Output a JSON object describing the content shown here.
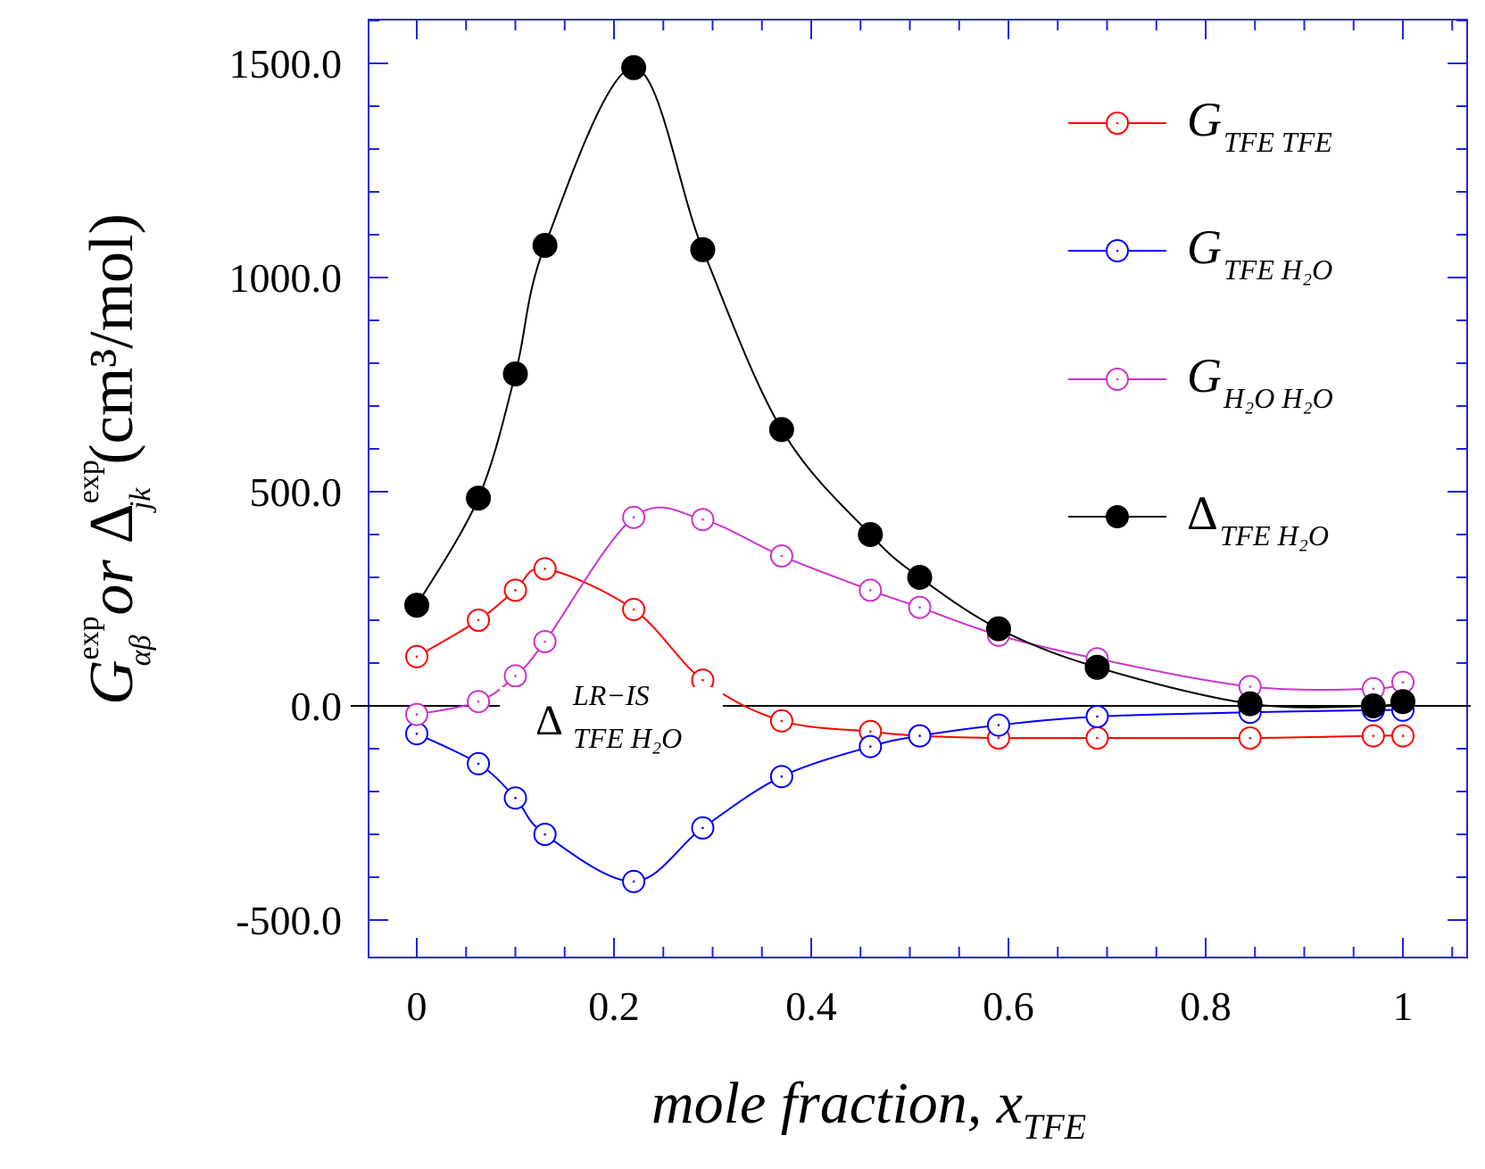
{
  "chart_data": {
    "type": "line",
    "xlabel": "mole fraction, x",
    "xlabel_sub": "TFE",
    "ylabel": {
      "g_main": "G",
      "g_sup": "exp",
      "g_sub": "αβ",
      "or_text": "or",
      "delta_main": "Δ",
      "delta_sup": "exp",
      "delta_sub": "jk",
      "units": "(cm³/mol)"
    },
    "xlim": [
      -0.05,
      1.05
    ],
    "ylim": [
      -600,
      1600
    ],
    "x_ticks": [
      0,
      0.2,
      0.4,
      0.6,
      0.8,
      1
    ],
    "x_tick_labels": [
      "0",
      "0.2",
      "0.4",
      "0.6",
      "0.8",
      "1"
    ],
    "y_ticks": [
      -500,
      0,
      500,
      1000,
      1500
    ],
    "y_tick_labels": [
      "-500.0",
      "0.0",
      "500.0",
      "1000.0",
      "1500.0"
    ],
    "series": [
      {
        "name": "G_TFE_TFE",
        "legend_main": "G",
        "legend_sub": "TFE TFE",
        "color": "#ff0000",
        "marker": "open-circle",
        "x": [
          0,
          0.0625,
          0.1,
          0.13,
          0.22,
          0.29,
          0.37,
          0.46,
          0.51,
          0.59,
          0.69,
          0.845,
          0.97,
          1.0
        ],
        "y": [
          115,
          200,
          270,
          320,
          225,
          60,
          -35,
          -60,
          -70,
          -75,
          -75,
          -75,
          -70,
          -70
        ]
      },
      {
        "name": "G_TFE_H2O",
        "legend_main": "G",
        "legend_sub": "TFE H₂O",
        "color": "#0000ff",
        "marker": "open-circle",
        "x": [
          0,
          0.0625,
          0.1,
          0.13,
          0.22,
          0.29,
          0.37,
          0.46,
          0.51,
          0.59,
          0.69,
          0.845,
          0.97,
          1.0
        ],
        "y": [
          -65,
          -135,
          -215,
          -300,
          -410,
          -285,
          -165,
          -95,
          -70,
          -45,
          -25,
          -15,
          -10,
          -10
        ]
      },
      {
        "name": "G_H2O_H2O",
        "legend_main": "G",
        "legend_sub": "H₂O H₂O",
        "color": "#cc33cc",
        "marker": "open-circle",
        "x": [
          0,
          0.0625,
          0.1,
          0.13,
          0.22,
          0.29,
          0.37,
          0.46,
          0.51,
          0.59,
          0.69,
          0.845,
          0.97,
          1.0
        ],
        "y": [
          -20,
          10,
          70,
          150,
          440,
          435,
          350,
          270,
          230,
          165,
          110,
          45,
          40,
          55
        ]
      },
      {
        "name": "Delta_TFE_H2O",
        "legend_main": "Δ",
        "legend_sub": "TFE H₂O",
        "color": "#000000",
        "marker": "filled-circle",
        "x": [
          0,
          0.0625,
          0.1,
          0.13,
          0.22,
          0.29,
          0.37,
          0.46,
          0.51,
          0.59,
          0.69,
          0.845,
          0.97,
          1.0
        ],
        "y": [
          235,
          485,
          775,
          1075,
          1490,
          1065,
          645,
          400,
          300,
          180,
          90,
          5,
          0,
          10
        ]
      }
    ],
    "annotation": {
      "main": "Δ",
      "sup": "LR−IS",
      "sub": "TFE H₂O",
      "x": 0.2,
      "y": 0
    },
    "zero_line": true,
    "legend_position": "top-right"
  }
}
